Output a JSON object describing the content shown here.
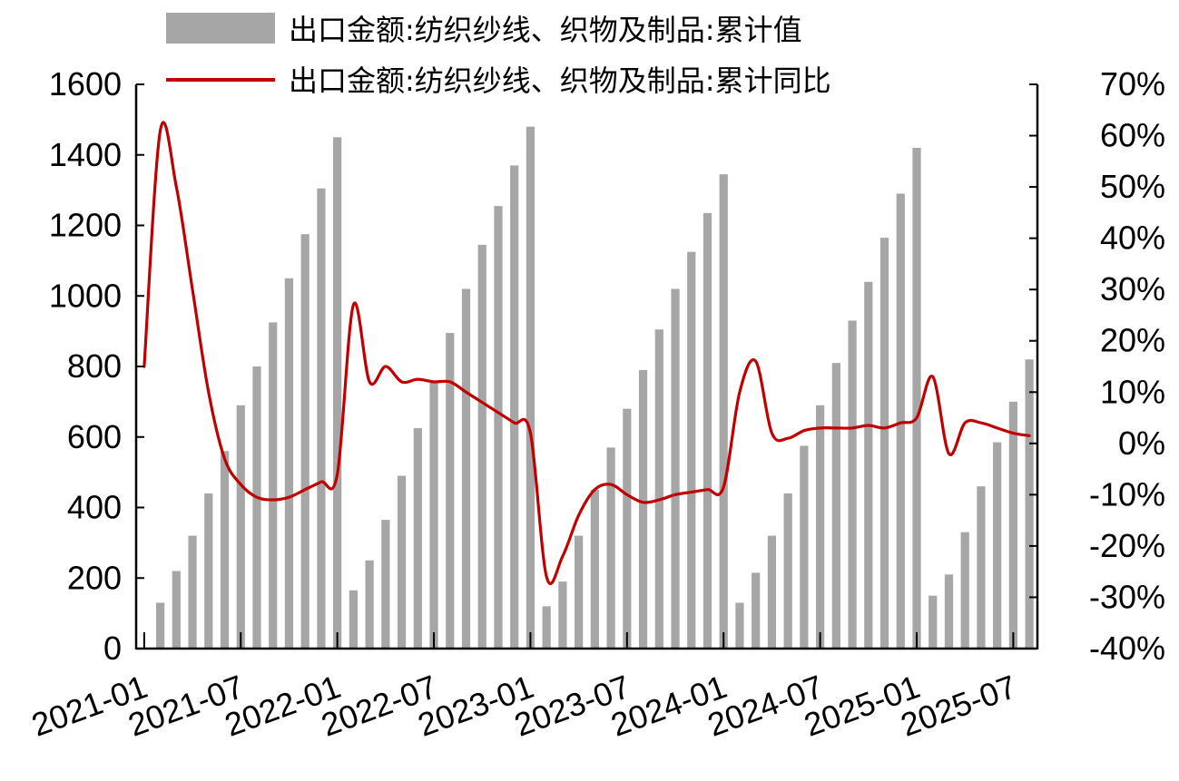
{
  "chart_data": {
    "type": "bar",
    "legend": {
      "bar_label": "出口金额:纺织纱线、织物及制品:累计值",
      "line_label": "出口金额:纺织纱线、织物及制品:累计同比",
      "placement": "top"
    },
    "colors": {
      "bar": "#a6a6a6",
      "line": "#c00000"
    },
    "left_axis": {
      "ylim": [
        0,
        1600
      ],
      "ticks": [
        "0",
        "200",
        "400",
        "600",
        "800",
        "1000",
        "1200",
        "1400",
        "1600"
      ]
    },
    "right_axis": {
      "ylim": [
        -40,
        70
      ],
      "ticks": [
        "-40%",
        "-30%",
        "-20%",
        "-10%",
        "0%",
        "10%",
        "20%",
        "30%",
        "40%",
        "50%",
        "60%",
        "70%"
      ]
    },
    "x_tick_labels": [
      "2021-01",
      "2021-07",
      "2022-01",
      "2022-07",
      "2023-01",
      "2023-07",
      "2024-01",
      "2024-07",
      "2025-01",
      "2025-07"
    ],
    "grid": false,
    "months": [
      "2021-01",
      "2021-02",
      "2021-03",
      "2021-04",
      "2021-05",
      "2021-06",
      "2021-07",
      "2021-08",
      "2021-09",
      "2021-10",
      "2021-11",
      "2021-12",
      "2022-01",
      "2022-02",
      "2022-03",
      "2022-04",
      "2022-05",
      "2022-06",
      "2022-07",
      "2022-08",
      "2022-09",
      "2022-10",
      "2022-11",
      "2022-12",
      "2023-01",
      "2023-02",
      "2023-03",
      "2023-04",
      "2023-05",
      "2023-06",
      "2023-07",
      "2023-08",
      "2023-09",
      "2023-10",
      "2023-11",
      "2023-12",
      "2024-01",
      "2024-02",
      "2024-03",
      "2024-04",
      "2024-05",
      "2024-06",
      "2024-07",
      "2024-08",
      "2024-09",
      "2024-10",
      "2024-11",
      "2024-12",
      "2025-01",
      "2025-02",
      "2025-03",
      "2025-04",
      "2025-05",
      "2025-06",
      "2025-07",
      "2025-08"
    ],
    "series": [
      {
        "name": "出口金额:纺织纱线、织物及制品:累计值",
        "type": "bar",
        "axis": "left",
        "values": [
          null,
          130,
          220,
          320,
          440,
          560,
          690,
          800,
          925,
          1050,
          1175,
          1305,
          1450,
          165,
          250,
          365,
          490,
          625,
          760,
          895,
          1020,
          1145,
          1255,
          1370,
          1480,
          120,
          190,
          320,
          450,
          570,
          680,
          790,
          905,
          1020,
          1125,
          1235,
          1345,
          130,
          215,
          320,
          440,
          575,
          690,
          810,
          930,
          1040,
          1165,
          1290,
          1420,
          150,
          210,
          330,
          460,
          585,
          700,
          820
        ]
      },
      {
        "name": "出口金额:纺织纱线、织物及制品:累计同比",
        "type": "line",
        "axis": "right",
        "values": [
          15,
          61,
          50,
          30,
          10,
          -3,
          -8,
          -10.5,
          -11,
          -10.5,
          -9,
          -7.5,
          -6,
          27,
          12,
          15,
          12,
          12.5,
          12,
          12,
          10,
          8,
          6,
          4,
          2,
          -26,
          -22,
          -14,
          -9,
          -8,
          -10,
          -11.5,
          -11,
          -10,
          -9.5,
          -9,
          -8.5,
          10,
          16,
          2,
          1,
          2.5,
          3,
          3,
          3,
          3.5,
          3,
          4,
          5,
          13,
          -2,
          4,
          4,
          3,
          2,
          1.5
        ]
      }
    ]
  }
}
